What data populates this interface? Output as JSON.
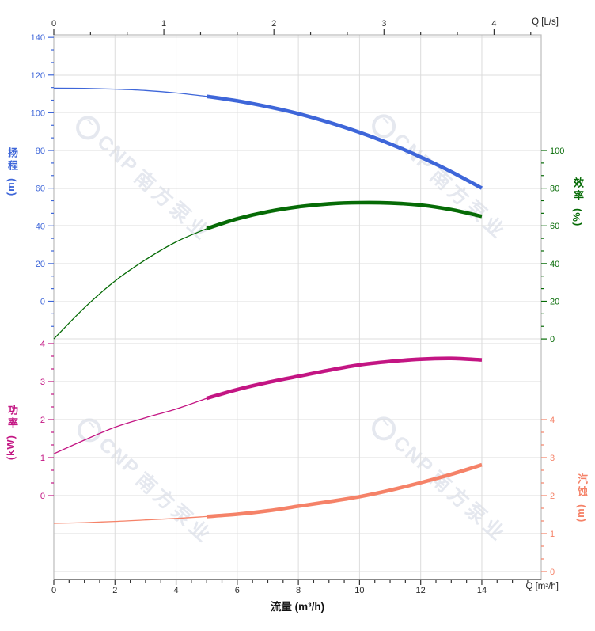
{
  "watermark": {
    "brand": "CNP",
    "text": "南方泵业",
    "color": "#e5e8ef"
  },
  "chart_data": {
    "type": "line",
    "title": "",
    "x_axis_bottom": {
      "title": "流量 (m³/h)",
      "corner_label": "Q [m³/h]",
      "ticks": [
        0,
        2,
        4,
        6,
        8,
        10,
        12,
        14
      ],
      "minor_step": 0.5,
      "max": 15.9,
      "color": "#2b2b2b"
    },
    "x_axis_top": {
      "corner_label": "Q [L/s]",
      "ticks": [
        0,
        1,
        2,
        3,
        4
      ],
      "minor_divisions": 3,
      "max": 4.43,
      "color": "#2b2b2b"
    },
    "y_axes": {
      "head": {
        "title": "扬程",
        "unit": "(m)",
        "color": "#3E66D9",
        "ticks": [
          0,
          20,
          40,
          60,
          80,
          100,
          120,
          140
        ],
        "minor_divisions": 3,
        "minor_extend_below": 2
      },
      "efficiency": {
        "title": "效率",
        "unit": "(%)",
        "color": "#066B06",
        "ticks": [
          0,
          20,
          40,
          60,
          80,
          100
        ],
        "minor_divisions": 3,
        "minor_extend_below": 0
      },
      "power": {
        "title": "功率",
        "unit": "(kW)",
        "color": "#C31583",
        "ticks": [
          0,
          1,
          2,
          3,
          4
        ],
        "minor_divisions": 3,
        "minor_extend_below": 0
      },
      "npsh": {
        "title": "汽蚀",
        "unit": "(m)",
        "color": "#F58268",
        "ticks": [
          0,
          1,
          2,
          3,
          4
        ],
        "minor_divisions": 3,
        "minor_extend_below": 0
      }
    },
    "x_values": [
      0,
      1,
      2,
      3,
      4,
      5,
      6,
      7,
      8,
      9,
      10,
      11,
      12,
      13,
      14
    ],
    "bold_from": 5,
    "series": [
      {
        "name": "head",
        "axis": "head",
        "color": "#3E66D9",
        "values": [
          113,
          112.9,
          112.5,
          111.8,
          110.5,
          108.7,
          106.3,
          103.2,
          99.5,
          94.9,
          89.6,
          83.5,
          76.5,
          68.7,
          60
        ]
      },
      {
        "name": "efficiency",
        "axis": "efficiency",
        "color": "#066B06",
        "values": [
          0,
          16.5,
          30.7,
          42,
          51.5,
          58.5,
          63.7,
          67.5,
          70.1,
          71.7,
          72.3,
          72.1,
          71,
          68.6,
          65
        ]
      },
      {
        "name": "power",
        "axis": "power",
        "color": "#C31583",
        "values": [
          1.1,
          1.46,
          1.8,
          2.05,
          2.28,
          2.56,
          2.79,
          2.98,
          3.14,
          3.3,
          3.44,
          3.53,
          3.59,
          3.61,
          3.57
        ]
      },
      {
        "name": "npsh",
        "axis": "npsh",
        "color": "#F58268",
        "values": [
          1.27,
          1.29,
          1.32,
          1.36,
          1.4,
          1.45,
          1.51,
          1.6,
          1.72,
          1.84,
          1.97,
          2.14,
          2.34,
          2.56,
          2.81
        ]
      }
    ]
  }
}
